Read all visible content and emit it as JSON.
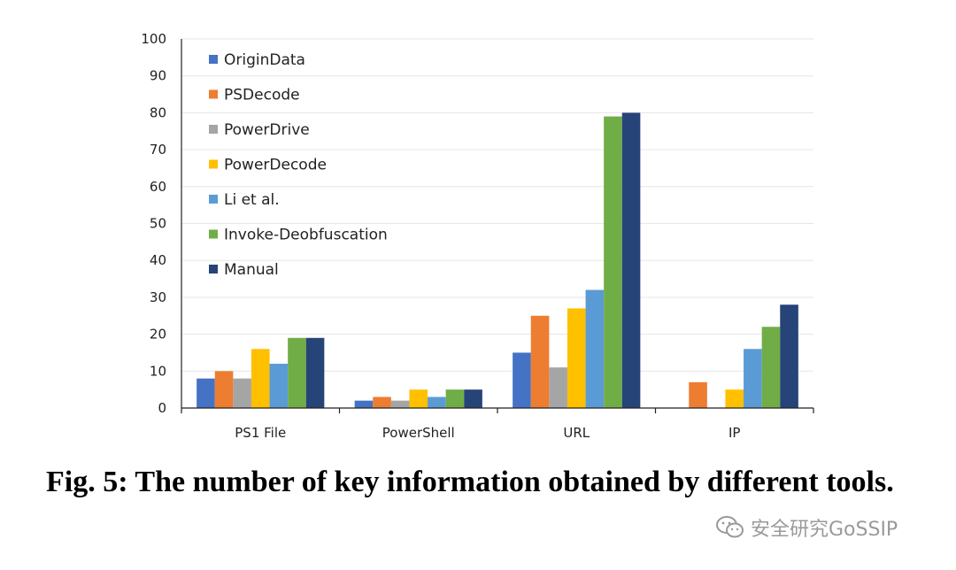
{
  "chart_data": {
    "type": "bar",
    "categories": [
      "PS1 File",
      "PowerShell",
      "URL",
      "IP"
    ],
    "series": [
      {
        "name": "OriginData",
        "color": "#4472C4",
        "values": [
          8,
          2,
          15,
          0
        ]
      },
      {
        "name": "PSDecode",
        "color": "#ED7D31",
        "values": [
          10,
          3,
          25,
          7
        ]
      },
      {
        "name": "PowerDrive",
        "color": "#A5A5A5",
        "values": [
          8,
          2,
          11,
          0
        ]
      },
      {
        "name": "PowerDecode",
        "color": "#FFC000",
        "values": [
          16,
          5,
          27,
          5
        ]
      },
      {
        "name": "Li et al.",
        "color": "#5B9BD5",
        "values": [
          12,
          3,
          32,
          16
        ]
      },
      {
        "name": "Invoke-Deobfuscation",
        "color": "#70AD47",
        "values": [
          19,
          5,
          79,
          22
        ]
      },
      {
        "name": "Manual",
        "color": "#264478",
        "values": [
          19,
          5,
          80,
          28
        ]
      }
    ],
    "ylim": [
      0,
      100
    ],
    "yticks": [
      0,
      10,
      20,
      30,
      40,
      50,
      60,
      70,
      80,
      90,
      100
    ],
    "grid": true,
    "legend_position": "top-left"
  },
  "caption": "Fig. 5: The number of key information obtained by different tools.",
  "watermark": "安全研究GoSSIP"
}
